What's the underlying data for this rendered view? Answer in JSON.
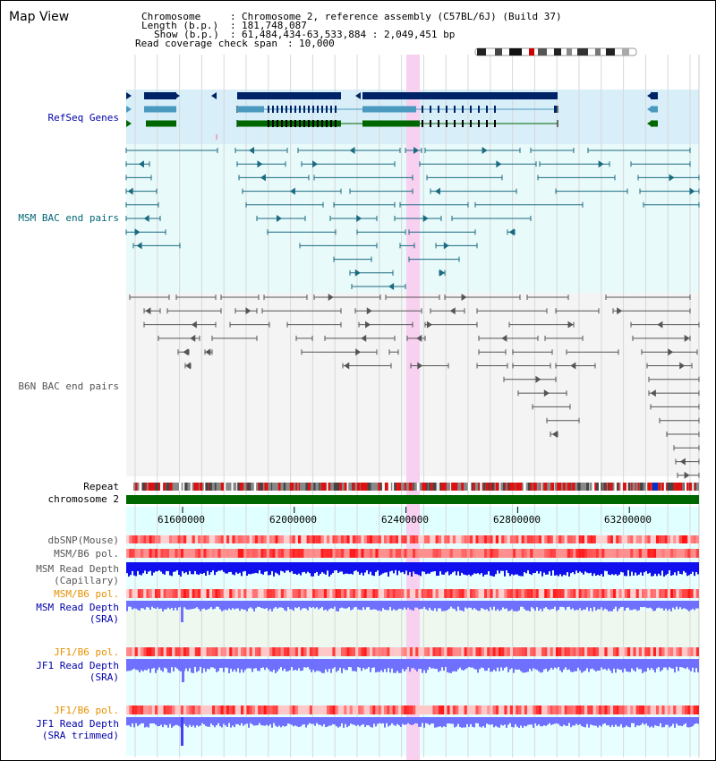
{
  "app": {
    "title": "Map View"
  },
  "info": {
    "chromosome_key": "Chromosome",
    "chromosome_value": "Chromosome 2, reference assembly (C57BL/6J) (Build 37)",
    "length_key": "Length (b.p.)",
    "length_value": "181,748,087",
    "show_key": "Show (b.p.)",
    "show_value": "61,484,434-63,533,884 : 2,049,451 bp",
    "coverage_key": "Read coverage check span",
    "coverage_value": "10,000",
    "sep": ":"
  },
  "tracks": {
    "refseq": "RefSeq Genes",
    "msm_bac": "MSM BAC end pairs",
    "b6n_bac": "B6N BAC end pairs",
    "repeat": "Repeat",
    "chromosome": "chromosome 2",
    "dbsnp": "dbSNP(Mouse)",
    "msm_b6_pol_1": "MSM/B6 pol.",
    "msm_depth_cap_1": "MSM Read Depth",
    "msm_depth_cap_2": "(Capillary)",
    "msm_b6_pol_2": "MSM/B6 pol.",
    "msm_depth_sra_1": "MSM Read Depth",
    "msm_depth_sra_2": "(SRA)",
    "jf1_b6_pol_1": "JF1/B6 pol.",
    "jf1_depth_sra_1": "JF1 Read Depth",
    "jf1_depth_sra_2": "(SRA)",
    "jf1_b6_pol_2": "JF1/B6 pol.",
    "jf1_depth_trim_1": "JF1 Read Depth",
    "jf1_depth_trim_2": "(SRA trimmed)"
  },
  "scale": {
    "ticks": [
      "61600000",
      "62000000",
      "62400000",
      "62800000",
      "63200000"
    ]
  },
  "colors": {
    "refseq_bg": "#d8eef8",
    "msm_bg": "#e8fafa",
    "b6n_bg": "#f4f4f4",
    "highlight": "#f8d0f0",
    "gene_dark": "#002266",
    "gene_mid": "#4a9abf",
    "gene_green": "#006600",
    "bac_teal": "#1a6a80",
    "bac_gray": "#555555",
    "chromosome_bar": "#006600",
    "snp_red": "#ee2222",
    "depth_blue": "#1010ee",
    "depth_light": "#7070ff"
  }
}
